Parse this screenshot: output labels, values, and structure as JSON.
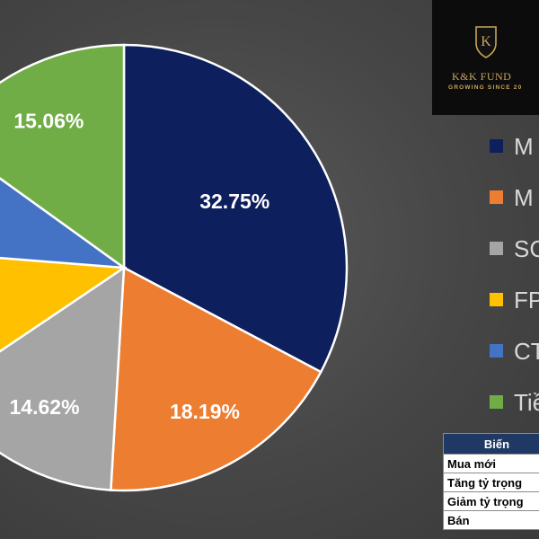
{
  "chart_data": {
    "type": "pie",
    "title": "",
    "slices": [
      {
        "label": "M",
        "value": 32.75,
        "text": "32.75%",
        "color": "#0d1f5c"
      },
      {
        "label": "M",
        "value": 18.19,
        "text": "18.19%",
        "color": "#ed7d31"
      },
      {
        "label": "SC",
        "value": 14.62,
        "text": "14.62%",
        "color": "#a5a5a5"
      },
      {
        "label": "FP",
        "value": 10.69,
        "text": "",
        "color": "#ffc000"
      },
      {
        "label": "CT",
        "value": 8.69,
        "text": "",
        "color": "#4472c4"
      },
      {
        "label": "Tiề",
        "value": 15.06,
        "text": "15.06%",
        "color": "#70ad47"
      }
    ],
    "data_label_color": "#ffffff",
    "legend_position": "right"
  },
  "logo": {
    "name": "K&K FUND",
    "tagline": "GROWING SINCE 20",
    "letter": "K"
  },
  "legend": {
    "text_color": "#d8d8d8"
  },
  "table": {
    "header": "Biến",
    "rows": [
      "Mua mới",
      "Tăng tỷ trọng",
      "Giảm tỷ trọng",
      "Bán"
    ]
  }
}
